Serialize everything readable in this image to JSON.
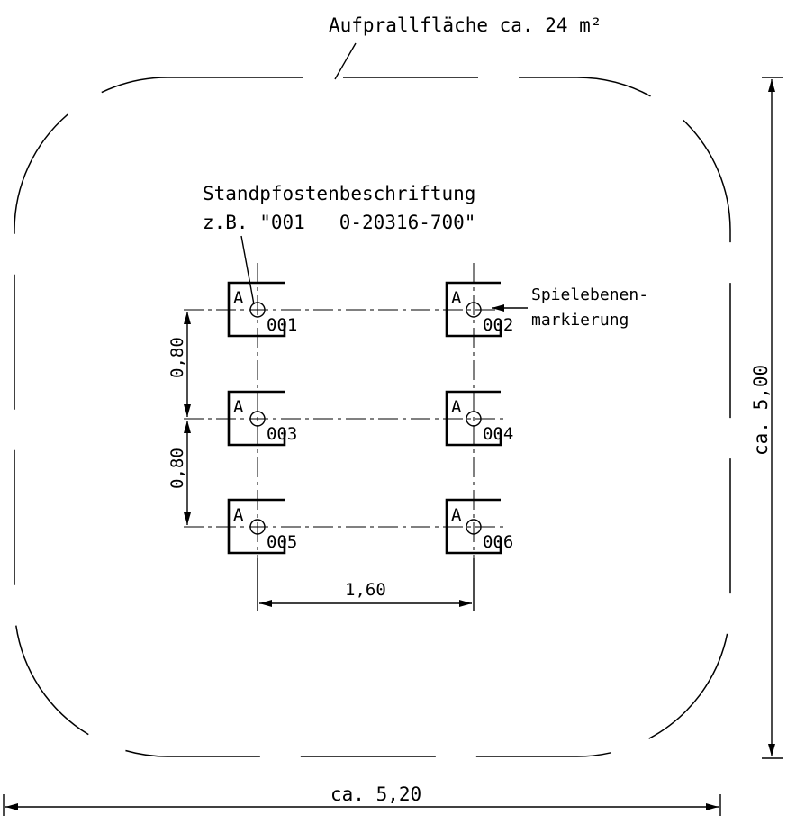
{
  "impact_area_label": "Aufprallfläche ca. 24 m²",
  "post_label_title": "Standpfostenbeschriftung",
  "post_label_example": "z.B. \"001   0-20316-700\"",
  "play_level_label_line1": "Spielebenen-",
  "play_level_label_line2": "markierung",
  "dim_spacing_upper": "0,80",
  "dim_spacing_lower": "0,80",
  "dim_post_distance": "1,60",
  "dim_total_height": "ca. 5,00",
  "dim_total_width": "ca. 5,20",
  "posts": [
    {
      "level": "A",
      "number": "001"
    },
    {
      "level": "A",
      "number": "002"
    },
    {
      "level": "A",
      "number": "003"
    },
    {
      "level": "A",
      "number": "004"
    },
    {
      "level": "A",
      "number": "005"
    },
    {
      "level": "A",
      "number": "006"
    }
  ]
}
